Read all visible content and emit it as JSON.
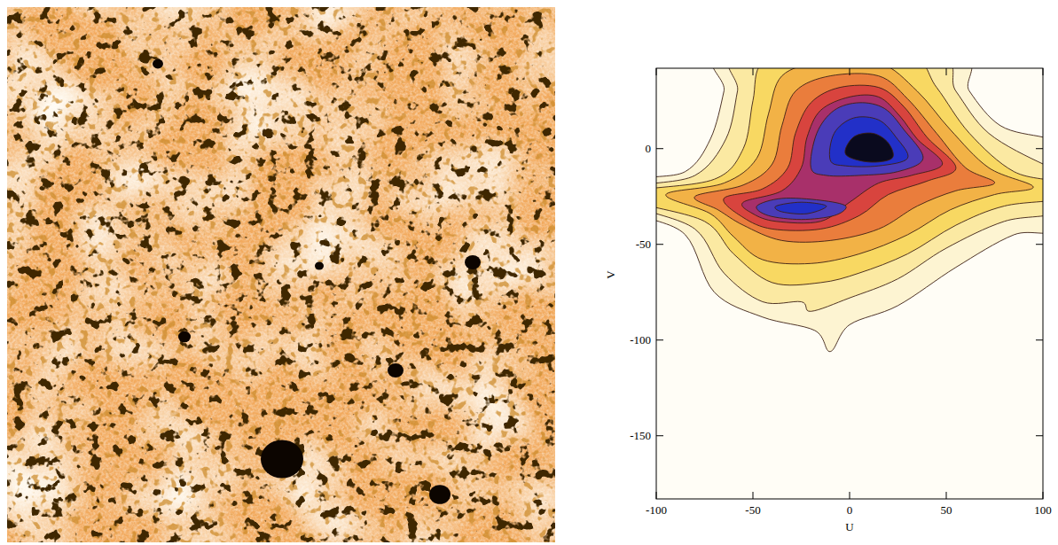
{
  "chart_data": [
    {
      "type": "image"
    },
    {
      "type": "contour",
      "x_label": "U",
      "y_label": "V",
      "xlim": [
        -100,
        100
      ],
      "ylim": [
        -183,
        42
      ],
      "xticks": [
        -100,
        -50,
        0,
        50,
        100
      ],
      "yticks": [
        -150,
        -100,
        -50,
        0
      ],
      "contours": [
        {
          "color": "#fdf4d2",
          "x": [
            -110,
            -85,
            -72,
            -65,
            -62,
            52,
            62,
            78,
            100,
            110,
            110,
            85,
            55,
            25,
            0,
            -10,
            -18,
            -45,
            -70,
            -85,
            -110
          ],
          "y": [
            -17,
            -12,
            5,
            30,
            50,
            50,
            30,
            12,
            6,
            4,
            -40,
            -45,
            -62,
            -82,
            -92,
            -106,
            -95,
            -88,
            -75,
            -45,
            -33
          ]
        },
        {
          "color": "#fbe9a2",
          "x": [
            -110,
            -80,
            -64,
            -58,
            -55,
            42,
            55,
            72,
            100,
            110,
            110,
            80,
            50,
            25,
            0,
            -20,
            -25,
            -45,
            -65,
            -80,
            -110
          ],
          "y": [
            -20,
            -14,
            5,
            30,
            50,
            50,
            30,
            8,
            -8,
            -10,
            -32,
            -38,
            -52,
            -68,
            -78,
            -85,
            -80,
            -80,
            -65,
            -42,
            -30
          ]
        },
        {
          "color": "#f8d862",
          "x": [
            -110,
            -70,
            -55,
            -50,
            -45,
            -20,
            30,
            45,
            62,
            85,
            110,
            110,
            80,
            55,
            30,
            5,
            -15,
            -40,
            -60,
            -75,
            -110
          ],
          "y": [
            -22,
            -16,
            0,
            25,
            45,
            50,
            50,
            32,
            8,
            -12,
            -18,
            -26,
            -30,
            -40,
            -55,
            -65,
            -70,
            -70,
            -55,
            -38,
            -28
          ]
        },
        {
          "color": "#f2b246",
          "x": [
            -95,
            -65,
            -48,
            -42,
            -35,
            -15,
            15,
            35,
            52,
            72,
            95,
            75,
            52,
            30,
            5,
            -20,
            -45,
            -60,
            -72
          ],
          "y": [
            -24,
            -18,
            -5,
            18,
            38,
            45,
            45,
            30,
            10,
            -10,
            -20,
            -24,
            -32,
            -45,
            -55,
            -60,
            -58,
            -46,
            -34
          ]
        },
        {
          "color": "#ea7d3c",
          "x": [
            -80,
            -55,
            -40,
            -35,
            -28,
            -10,
            15,
            30,
            45,
            60,
            75,
            55,
            35,
            15,
            -10,
            -35,
            -55,
            -68
          ],
          "y": [
            -25,
            -19,
            -8,
            12,
            30,
            38,
            38,
            26,
            8,
            -10,
            -18,
            -22,
            -30,
            -42,
            -48,
            -48,
            -40,
            -32
          ]
        },
        {
          "color": "#d8443e",
          "x": [
            -65,
            -45,
            -32,
            -28,
            -20,
            -5,
            15,
            28,
            40,
            55,
            40,
            20,
            5,
            -15,
            -40,
            -55
          ],
          "y": [
            -26,
            -21,
            -10,
            8,
            24,
            32,
            32,
            22,
            6,
            -10,
            -17,
            -24,
            -35,
            -42,
            -42,
            -36
          ]
        },
        {
          "color": "#a8306a",
          "x": [
            -55,
            -35,
            -25,
            -22,
            -15,
            0,
            15,
            26,
            35,
            48,
            32,
            15,
            0,
            -15,
            -38,
            -50
          ],
          "y": [
            -28,
            -22,
            -10,
            6,
            20,
            27,
            27,
            17,
            5,
            -8,
            -14,
            -18,
            -28,
            -38,
            -38,
            -34
          ]
        },
        {
          "color": "#4a3cb8",
          "x": [
            -20,
            -17,
            -8,
            5,
            18,
            28,
            38,
            25,
            5,
            -12
          ],
          "y": [
            -10,
            8,
            20,
            24,
            21,
            10,
            -5,
            -12,
            -14,
            -14
          ]
        },
        {
          "color": "#4a3cb8",
          "x": [
            -48,
            -35,
            -15,
            -2,
            -8,
            -25,
            -42
          ],
          "y": [
            -30,
            -26,
            -27,
            -30,
            -35,
            -37,
            -35
          ]
        },
        {
          "color": "#2230c8",
          "x": [
            -10,
            -8,
            2,
            15,
            24,
            30,
            15,
            -2
          ],
          "y": [
            -6,
            8,
            16,
            15,
            6,
            -5,
            -9,
            -9
          ]
        },
        {
          "color": "#2230c8",
          "x": [
            -38,
            -25,
            -12,
            -22,
            -35
          ],
          "y": [
            -30,
            -28,
            -30,
            -34,
            -33
          ]
        },
        {
          "color": "#0a0a1e",
          "x": [
            -2,
            2,
            12,
            20,
            22,
            10
          ],
          "y": [
            -3,
            6,
            8,
            3,
            -5,
            -7
          ]
        }
      ]
    }
  ]
}
